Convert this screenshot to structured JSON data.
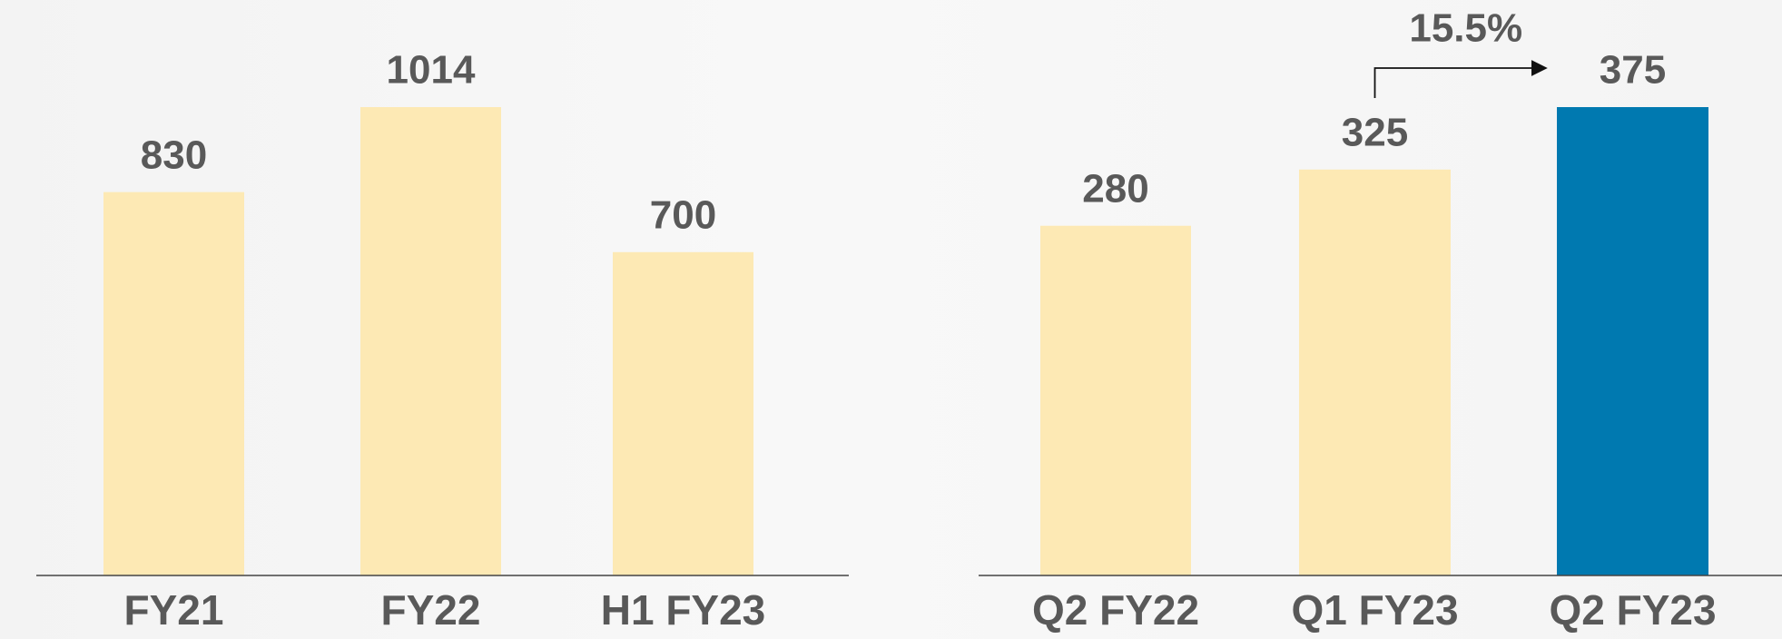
{
  "chart_data": [
    {
      "type": "bar",
      "categories": [
        "FY21",
        "FY22",
        "H1 FY23"
      ],
      "values": [
        830,
        1014,
        700
      ],
      "colors": [
        "#fde9b4",
        "#fde9b4",
        "#fde9b4"
      ]
    },
    {
      "type": "bar",
      "categories": [
        "Q2 FY22",
        "Q1 FY23",
        "Q2 FY23"
      ],
      "values": [
        280,
        325,
        375
      ],
      "colors": [
        "#fde9b4",
        "#fde9b4",
        "#0079b0"
      ],
      "annotation": "15.5%"
    }
  ]
}
